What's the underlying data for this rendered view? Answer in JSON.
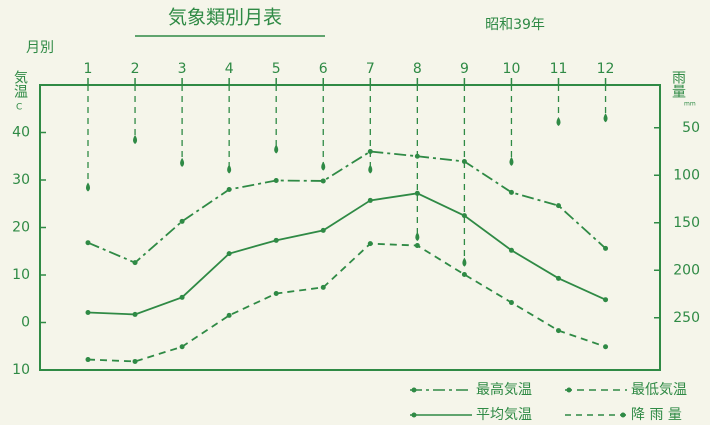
{
  "chart_data": {
    "type": "line",
    "title": "気象類別月表",
    "subtitle": "昭和39年",
    "xlabel": "月別",
    "ylabel": "気温",
    "yunit": "C",
    "y2label": "雨量",
    "y2unit": "mm",
    "categories": [
      "1",
      "2",
      "3",
      "4",
      "5",
      "6",
      "7",
      "8",
      "9",
      "10",
      "11",
      "12"
    ],
    "ylim": [
      -10,
      50
    ],
    "yticks": [
      {
        "value": -10,
        "label": "10"
      },
      0,
      10,
      20,
      30,
      40
    ],
    "y2lim": [
      5,
      305
    ],
    "y2ticks": [
      50,
      100,
      150,
      200,
      250
    ],
    "color": "#2f8a45",
    "series": [
      {
        "name": "最高気温",
        "linestyle": "dashdot",
        "values": [
          16.8,
          12.6,
          21.3,
          28,
          29.9,
          29.8,
          36,
          35,
          33.9,
          27.4,
          24.6,
          15.6
        ]
      },
      {
        "name": "最低気温",
        "linestyle": "dashed",
        "values": [
          -7.8,
          -8.2,
          -5.1,
          1.5,
          6.1,
          7.4,
          16.6,
          16.2,
          10.1,
          4.2,
          -1.7,
          -5.1
        ]
      },
      {
        "name": "平均気温",
        "linestyle": "solid",
        "values": [
          2.1,
          1.7,
          5.3,
          14.5,
          17.3,
          19.4,
          25.7,
          27.2,
          22.5,
          15.2,
          9.3,
          4.8
        ]
      },
      {
        "name": "降 雨 量",
        "linestyle": "drop",
        "axis": "y2",
        "values": [
          114,
          64,
          88,
          95,
          74,
          92,
          95,
          166,
          193,
          87,
          45,
          41
        ]
      }
    ]
  }
}
